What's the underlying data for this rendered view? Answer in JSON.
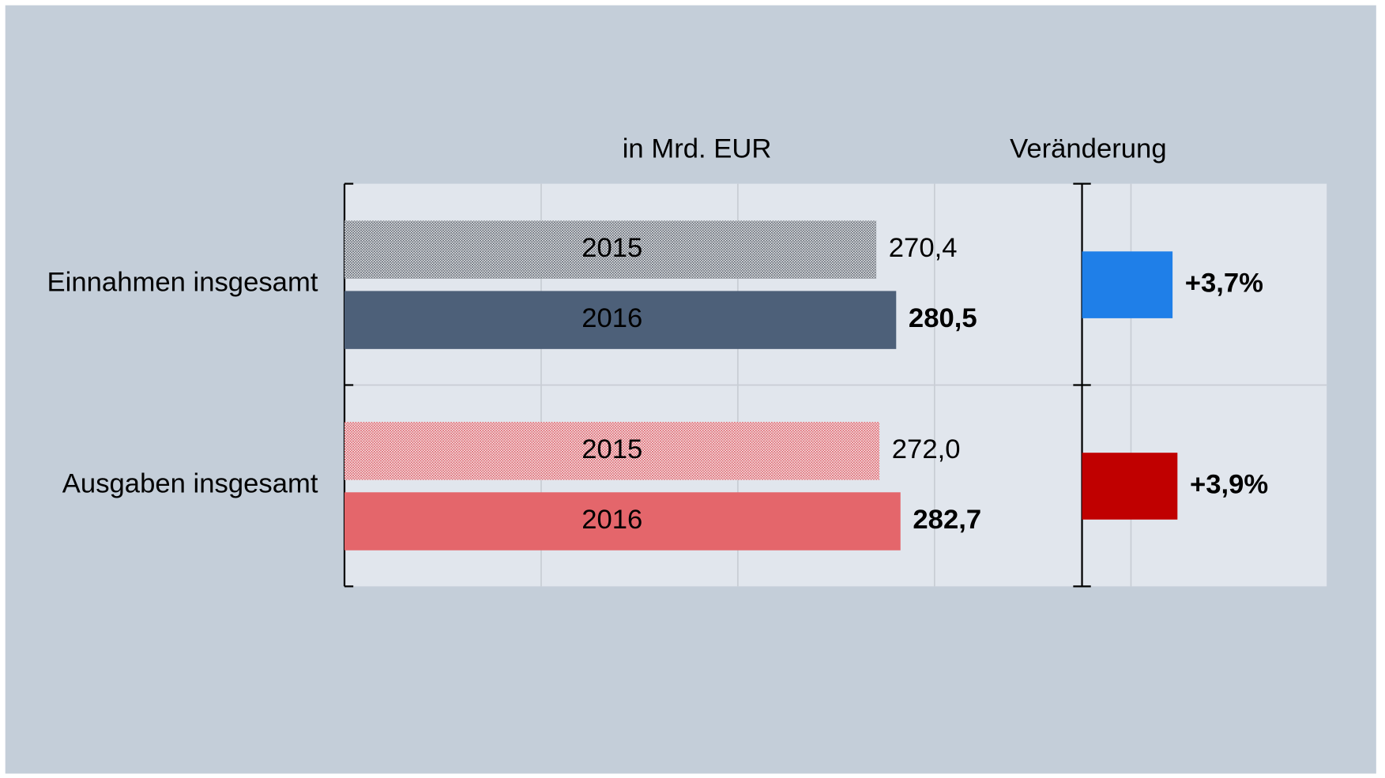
{
  "chart_data": [
    {
      "type": "bar",
      "orientation": "horizontal",
      "title": "in Mrd. EUR",
      "categories": [
        "Einnahmen insgesamt",
        "Ausgaben insgesamt"
      ],
      "series": [
        {
          "name": "2015",
          "pattern": "dotted",
          "colors": [
            "#5c6470",
            "#e0606a"
          ],
          "values": [
            270.4,
            272.0
          ],
          "value_labels": [
            "270,4",
            "272,0"
          ]
        },
        {
          "name": "2016",
          "colors": [
            "#4d6079",
            "#e4666b"
          ],
          "values": [
            280.5,
            282.7
          ],
          "value_labels": [
            "280,5",
            "282,7"
          ]
        }
      ],
      "xlim": [
        0,
        375
      ],
      "xticks": [
        0,
        100,
        200,
        300
      ],
      "grid": true
    },
    {
      "type": "bar",
      "orientation": "horizontal",
      "title": "Veränderung",
      "colors": [
        "#1f7fe8",
        "#c00000"
      ],
      "values": [
        3.7,
        3.9
      ],
      "value_labels": [
        "+3,7%",
        "+3,9%"
      ],
      "xlim": [
        0,
        10
      ],
      "xticks": [
        0,
        2
      ],
      "grid": true
    }
  ]
}
